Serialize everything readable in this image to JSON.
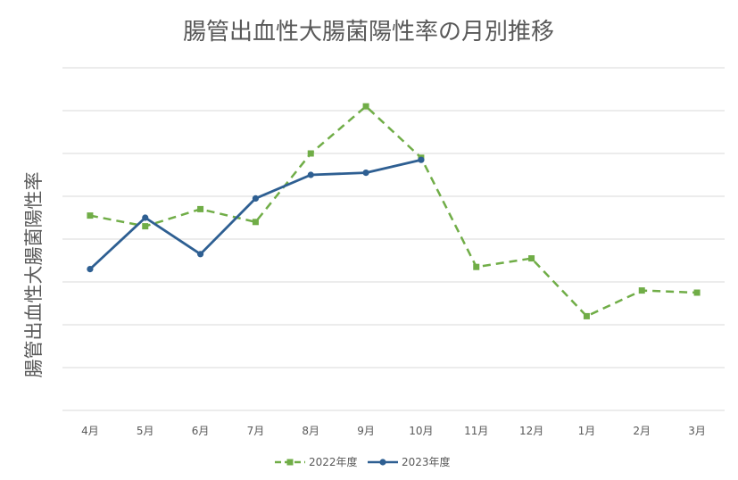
{
  "chart_data": {
    "type": "line",
    "title": "腸管出血性大腸菌陽性率の月別推移",
    "xlabel": "",
    "ylabel": "腸管出血性大腸菌陽性率",
    "categories": [
      "4月",
      "5月",
      "6月",
      "7月",
      "8月",
      "9月",
      "10月",
      "11月",
      "12月",
      "1月",
      "2月",
      "3月"
    ],
    "ylim": [
      0,
      8
    ],
    "grid": true,
    "y_tick_labels_shown": false,
    "legend_position": "bottom",
    "series": [
      {
        "name": "2022年度",
        "color": "#70ad47",
        "line_style": "dashed",
        "marker": "square",
        "values": [
          4.55,
          4.3,
          4.7,
          4.4,
          6.0,
          7.1,
          5.9,
          3.35,
          3.55,
          2.2,
          2.8,
          2.75
        ]
      },
      {
        "name": "2023年度",
        "color": "#2e5f92",
        "line_style": "solid",
        "marker": "circle",
        "values": [
          3.3,
          4.5,
          3.65,
          4.95,
          5.5,
          5.55,
          5.85,
          null,
          null,
          null,
          null,
          null
        ]
      }
    ]
  }
}
